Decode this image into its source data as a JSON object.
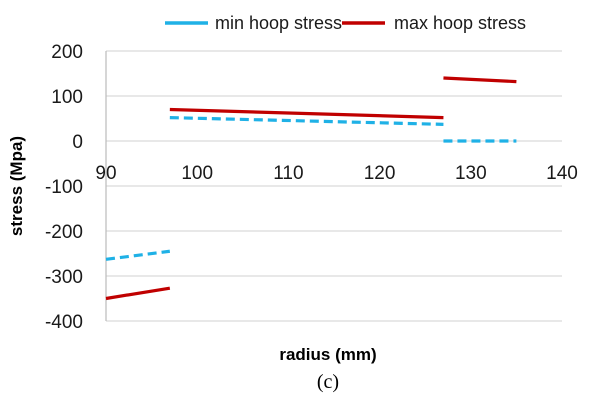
{
  "chart_data": {
    "type": "line",
    "xlabel": "radius (mm)",
    "ylabel": "stress (Mpa)",
    "xlim": [
      90,
      140
    ],
    "ylim": [
      -400,
      200
    ],
    "xticks": [
      "90",
      "100",
      "110",
      "120",
      "130",
      "140"
    ],
    "yticks": [
      "200",
      "100",
      "0",
      "-100",
      "-200",
      "-300",
      "-400"
    ],
    "grid": "horizontal",
    "legend": "top",
    "caption": "(c)",
    "series": [
      {
        "name": "min hoop stress",
        "color": "#1fb1e6",
        "dashed": true,
        "segments": [
          [
            [
              90,
              -263
            ],
            [
              97,
              -245
            ]
          ],
          [
            [
              97,
              52
            ],
            [
              127,
              37
            ]
          ],
          [
            [
              127,
              0
            ],
            [
              135,
              0
            ]
          ]
        ]
      },
      {
        "name": "max hoop stress",
        "color": "#c00000",
        "dashed": false,
        "segments": [
          [
            [
              90,
              -350
            ],
            [
              97,
              -327
            ]
          ],
          [
            [
              97,
              70
            ],
            [
              127,
              52
            ]
          ],
          [
            [
              127,
              140
            ],
            [
              135,
              132
            ]
          ]
        ]
      }
    ]
  }
}
